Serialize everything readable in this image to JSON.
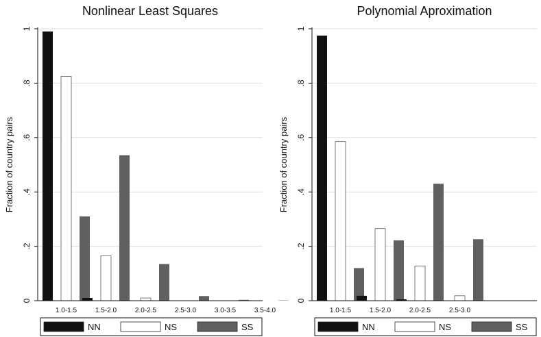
{
  "chart_data": [
    {
      "type": "bar",
      "title": "Nonlinear Least Squares",
      "ylabel": "Fraction of country pairs",
      "xlabel": "",
      "ylim": [
        0,
        1
      ],
      "yticks": [
        0,
        0.2,
        0.4,
        0.6,
        0.8,
        1
      ],
      "ytick_labels": [
        "0",
        ".2",
        ".4",
        ".6",
        ".8",
        "1"
      ],
      "grid": true,
      "categories": [
        "1.0-1.5",
        "1.5-2.0",
        "2.0-2.5",
        "2.5-3.0",
        "3.0-3.5",
        "3.5-4.0"
      ],
      "series": [
        {
          "name": "NN",
          "color": "#111111",
          "values": [
            0.99,
            0.01,
            0.0,
            0.0,
            0.0,
            0.0
          ]
        },
        {
          "name": "NS",
          "color": "#ffffff",
          "values": [
            0.825,
            0.165,
            0.01,
            0.0,
            0.0,
            0.0
          ]
        },
        {
          "name": "SS",
          "color": "#606060",
          "values": [
            0.31,
            0.535,
            0.135,
            0.017,
            0.003,
            0.001
          ]
        }
      ]
    },
    {
      "type": "bar",
      "title": "Polynomial Aproximation",
      "ylabel": "Fraction of country pairs",
      "xlabel": "",
      "ylim": [
        0,
        1
      ],
      "yticks": [
        0,
        0.2,
        0.4,
        0.6,
        0.8,
        1
      ],
      "ytick_labels": [
        "0",
        ".2",
        ".4",
        ".6",
        ".8",
        "1"
      ],
      "grid": true,
      "categories": [
        "1.0-1.5",
        "1.5-2.0",
        "2.0-2.5",
        "2.5-3.0"
      ],
      "series": [
        {
          "name": "NN",
          "color": "#111111",
          "values": [
            0.975,
            0.018,
            0.005,
            0.0
          ]
        },
        {
          "name": "NS",
          "color": "#ffffff",
          "values": [
            0.585,
            0.265,
            0.128,
            0.018
          ]
        },
        {
          "name": "SS",
          "color": "#606060",
          "values": [
            0.12,
            0.222,
            0.43,
            0.226
          ]
        }
      ]
    }
  ]
}
